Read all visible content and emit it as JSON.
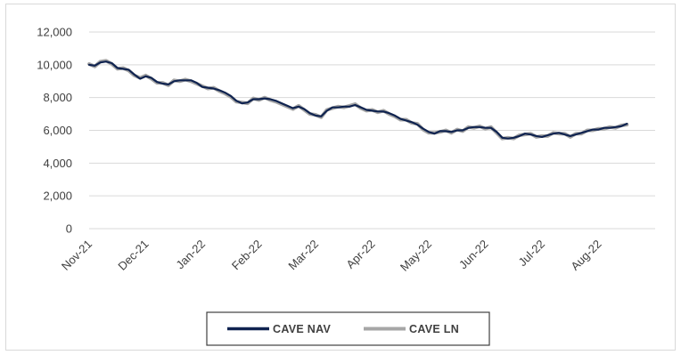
{
  "chart_data": {
    "type": "line",
    "title": "",
    "xlabel": "",
    "ylabel": "",
    "ylim": [
      0,
      12000
    ],
    "y_ticks": [
      0,
      2000,
      4000,
      6000,
      8000,
      10000,
      12000
    ],
    "y_tick_labels": [
      "0",
      "2,000",
      "4,000",
      "6,000",
      "8,000",
      "10,000",
      "12,000"
    ],
    "x_tick_labels": [
      "Nov-21",
      "Dec-21",
      "Jan-22",
      "Feb-22",
      "Mar-22",
      "Apr-22",
      "May-22",
      "Jun-22",
      "Jul-22",
      "Aug-22"
    ],
    "grid": true,
    "legend_position": "bottom",
    "x_month_index": [
      0,
      0.1,
      0.2,
      0.3,
      0.4,
      0.5,
      0.6,
      0.7,
      0.8,
      0.9,
      1.0,
      1.1,
      1.2,
      1.3,
      1.4,
      1.5,
      1.6,
      1.7,
      1.8,
      1.9,
      2.0,
      2.1,
      2.2,
      2.3,
      2.4,
      2.5,
      2.6,
      2.7,
      2.8,
      2.9,
      3.0,
      3.1,
      3.2,
      3.3,
      3.4,
      3.5,
      3.6,
      3.7,
      3.8,
      3.9,
      4.0,
      4.1,
      4.2,
      4.3,
      4.4,
      4.5,
      4.6,
      4.7,
      4.8,
      4.9,
      5.0,
      5.1,
      5.2,
      5.3,
      5.4,
      5.5,
      5.6,
      5.7,
      5.8,
      5.9,
      6.0,
      6.1,
      6.2,
      6.3,
      6.4,
      6.5,
      6.6,
      6.7,
      6.8,
      6.9,
      7.0,
      7.1,
      7.2,
      7.3,
      7.4,
      7.5,
      7.6,
      7.7,
      7.8,
      7.9,
      8.0,
      8.1,
      8.2,
      8.3,
      8.4,
      8.5,
      8.6,
      8.7,
      8.8,
      8.9,
      9.0,
      9.1,
      9.2,
      9.3,
      9.4,
      9.5
    ],
    "series": [
      {
        "name": "CAVE NAV",
        "color": "#0f2350",
        "values": [
          10000,
          9950,
          10150,
          10200,
          10100,
          9800,
          9750,
          9700,
          9400,
          9150,
          9300,
          9200,
          8950,
          8850,
          8800,
          9000,
          9050,
          9050,
          9050,
          8900,
          8650,
          8600,
          8550,
          8450,
          8300,
          8100,
          7800,
          7650,
          7700,
          7900,
          7900,
          7950,
          7900,
          7800,
          7650,
          7500,
          7350,
          7450,
          7300,
          7050,
          6900,
          6850,
          7200,
          7400,
          7400,
          7450,
          7450,
          7550,
          7400,
          7250,
          7200,
          7150,
          7150,
          7050,
          6900,
          6700,
          6600,
          6500,
          6350,
          6100,
          5900,
          5800,
          5950,
          5950,
          5900,
          6000,
          6000,
          6150,
          6200,
          6200,
          6150,
          6150,
          5900,
          5550,
          5500,
          5550,
          5650,
          5800,
          5750,
          5650,
          5600,
          5700,
          5800,
          5850,
          5750,
          5650,
          5750,
          5850,
          5950,
          6050,
          6050,
          6150,
          6150,
          6200,
          6250,
          6400
        ]
      },
      {
        "name": "CAVE LN",
        "color": "#a6a6a6",
        "values": [
          10050,
          9900,
          10200,
          10250,
          10050,
          9750,
          9800,
          9650,
          9350,
          9200,
          9350,
          9150,
          8900,
          8900,
          8750,
          9050,
          9000,
          9100,
          9000,
          8850,
          8700,
          8550,
          8600,
          8400,
          8250,
          8050,
          7750,
          7700,
          7650,
          7950,
          7850,
          8000,
          7850,
          7750,
          7600,
          7450,
          7300,
          7500,
          7250,
          7000,
          6950,
          6800,
          7250,
          7350,
          7450,
          7400,
          7500,
          7600,
          7350,
          7200,
          7250,
          7100,
          7200,
          7000,
          6850,
          6650,
          6650,
          6450,
          6400,
          6050,
          5850,
          5850,
          5900,
          6000,
          5850,
          6050,
          5950,
          6200,
          6150,
          6250,
          6100,
          6200,
          5850,
          5500,
          5550,
          5500,
          5700,
          5750,
          5800,
          5600,
          5650,
          5650,
          5850,
          5800,
          5800,
          5600,
          5800,
          5800,
          6000,
          6000,
          6100,
          6100,
          6200,
          6150,
          6300,
          6350
        ]
      }
    ]
  }
}
